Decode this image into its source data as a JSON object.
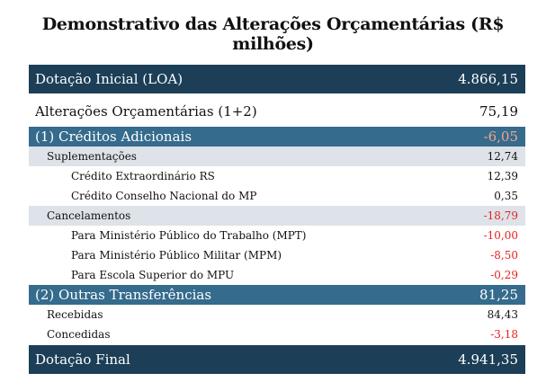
{
  "title": "Demonstrativo das Alterações Orçamentárias (R$ milhões)",
  "rows": [
    {
      "label": "Dotação Inicial (LOA)",
      "value": "4.866,15"
    },
    {
      "label": "Alterações Orçamentárias (1+2)",
      "value": "75,19"
    },
    {
      "label": "(1) Créditos Adicionais",
      "value": "-6,05"
    },
    {
      "label": "Suplementações",
      "value": "12,74"
    },
    {
      "label": "Crédito Extraordinário RS",
      "value": "12,39"
    },
    {
      "label": "Crédito Conselho Nacional do MP",
      "value": "0,35"
    },
    {
      "label": "Cancelamentos",
      "value": "-18,79"
    },
    {
      "label": "Para Ministério Público do Trabalho (MPT)",
      "value": "-10,00"
    },
    {
      "label": "Para Ministério Público Militar (MPM)",
      "value": "-8,50"
    },
    {
      "label": "Para Escola Superior do MPU",
      "value": "-0,29"
    },
    {
      "label": "(2) Outras Transferências",
      "value": "81,25"
    },
    {
      "label": "Recebidas",
      "value": "84,43"
    },
    {
      "label": "Concedidas",
      "value": "-3,18"
    },
    {
      "label": "Dotação Final",
      "value": "4.941,35"
    }
  ],
  "colors": {
    "header_dark": "#1c3f57",
    "section_blue": "#356b8c",
    "subsection_gray": "#dde3e8",
    "negative": "#e8211f",
    "negative_on_blue": "#f4a48a"
  }
}
